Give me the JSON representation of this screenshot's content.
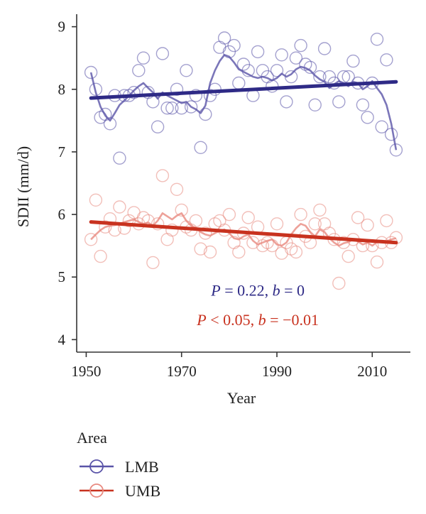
{
  "chart_data": {
    "type": "scatter",
    "xlabel": "Year",
    "ylabel": "SDII (mm/d)",
    "xlim": [
      1948,
      2018
    ],
    "ylim": [
      3.8,
      9.2
    ],
    "x_ticks": [
      1950,
      1970,
      1990,
      2010
    ],
    "y_ticks": [
      4,
      5,
      6,
      7,
      8,
      9
    ],
    "grid": false,
    "legend": {
      "title": "Area",
      "placement": "bottom-left",
      "entries": [
        "LMB",
        "UMB"
      ]
    },
    "annotations": [
      {
        "p_label": "P",
        "p_text": " = 0.22, ",
        "b_label": "b",
        "b_text": " = 0",
        "color": "#2e2a86",
        "x": 1986,
        "y": 4.7
      },
      {
        "p_label": "P",
        "p_text": " < 0.05, ",
        "b_label": "b",
        "b_text": " = −0.01",
        "color": "#c8321f",
        "x": 1986,
        "y": 4.23
      }
    ],
    "series": [
      {
        "name": "LMB",
        "color": "#5a54a8",
        "trend_color": "#2e2a86",
        "trend": [
          [
            1951,
            7.86
          ],
          [
            2015,
            8.12
          ]
        ],
        "x": [
          1951,
          1952,
          1953,
          1954,
          1955,
          1956,
          1957,
          1958,
          1959,
          1960,
          1961,
          1962,
          1963,
          1964,
          1965,
          1966,
          1967,
          1968,
          1969,
          1970,
          1971,
          1972,
          1973,
          1974,
          1975,
          1976,
          1977,
          1978,
          1979,
          1980,
          1981,
          1982,
          1983,
          1984,
          1985,
          1986,
          1987,
          1988,
          1989,
          1990,
          1991,
          1992,
          1993,
          1994,
          1995,
          1996,
          1997,
          1998,
          1999,
          2000,
          2001,
          2002,
          2003,
          2004,
          2005,
          2006,
          2007,
          2008,
          2009,
          2010,
          2011,
          2012,
          2013,
          2014,
          2015
        ],
        "y": [
          8.27,
          8.0,
          7.55,
          7.6,
          7.45,
          7.9,
          6.9,
          7.9,
          7.9,
          7.95,
          8.3,
          8.5,
          7.95,
          7.8,
          7.4,
          8.57,
          7.7,
          7.7,
          8.0,
          7.7,
          8.3,
          7.72,
          7.9,
          7.07,
          7.6,
          7.9,
          8.0,
          8.67,
          8.82,
          8.6,
          8.7,
          8.1,
          8.4,
          8.3,
          7.9,
          8.6,
          8.3,
          8.2,
          8.05,
          8.3,
          8.55,
          7.8,
          8.2,
          8.5,
          8.7,
          8.4,
          8.35,
          7.75,
          8.2,
          8.65,
          8.2,
          8.1,
          7.8,
          8.2,
          8.2,
          8.45,
          8.1,
          7.75,
          7.55,
          8.1,
          8.8,
          7.4,
          8.47,
          7.28,
          7.03
        ],
        "smooth": [
          8.27,
          7.95,
          7.72,
          7.58,
          7.5,
          7.62,
          7.75,
          7.82,
          7.9,
          7.98,
          8.05,
          8.1,
          8.02,
          7.95,
          7.85,
          7.95,
          7.9,
          7.86,
          7.82,
          7.78,
          7.8,
          7.72,
          7.68,
          7.62,
          7.74,
          8.1,
          8.3,
          8.45,
          8.55,
          8.52,
          8.43,
          8.32,
          8.28,
          8.24,
          8.2,
          8.18,
          8.2,
          8.18,
          8.14,
          8.18,
          8.25,
          8.2,
          8.24,
          8.32,
          8.36,
          8.34,
          8.3,
          8.22,
          8.16,
          8.12,
          8.02,
          8.08,
          8.13,
          8.1,
          8.05,
          8.12,
          8.1,
          8.0,
          8.05,
          8.13,
          8.02,
          7.92,
          7.75,
          7.45,
          7.03
        ]
      },
      {
        "name": "UMB",
        "color": "#e88a80",
        "trend_color": "#c8321f",
        "trend": [
          [
            1951,
            5.88
          ],
          [
            2015,
            5.55
          ]
        ],
        "x": [
          1951,
          1952,
          1953,
          1954,
          1955,
          1956,
          1957,
          1958,
          1959,
          1960,
          1961,
          1962,
          1963,
          1964,
          1965,
          1966,
          1967,
          1968,
          1969,
          1970,
          1971,
          1972,
          1973,
          1974,
          1975,
          1976,
          1977,
          1978,
          1979,
          1980,
          1981,
          1982,
          1983,
          1984,
          1985,
          1986,
          1987,
          1988,
          1989,
          1990,
          1991,
          1992,
          1993,
          1994,
          1995,
          1996,
          1997,
          1998,
          1999,
          2000,
          2001,
          2002,
          2003,
          2004,
          2005,
          2006,
          2007,
          2008,
          2009,
          2010,
          2011,
          2012,
          2013,
          2014,
          2015
        ],
        "y": [
          5.6,
          6.23,
          5.33,
          5.8,
          5.93,
          5.75,
          6.12,
          5.78,
          5.9,
          6.03,
          5.85,
          5.95,
          5.9,
          5.23,
          5.85,
          6.62,
          5.6,
          5.75,
          6.4,
          6.07,
          5.8,
          5.75,
          5.9,
          5.45,
          5.7,
          5.4,
          5.85,
          5.9,
          5.75,
          6.0,
          5.55,
          5.4,
          5.7,
          5.95,
          5.55,
          5.8,
          5.5,
          5.55,
          5.5,
          5.85,
          5.38,
          5.55,
          5.45,
          5.4,
          6.0,
          5.65,
          5.55,
          5.85,
          6.07,
          5.85,
          5.7,
          5.6,
          4.9,
          5.55,
          5.33,
          5.6,
          5.95,
          5.5,
          5.83,
          5.5,
          5.24,
          5.55,
          5.9,
          5.55,
          5.63
        ],
        "smooth": [
          5.6,
          5.68,
          5.75,
          5.8,
          5.82,
          5.83,
          5.85,
          5.88,
          5.9,
          5.92,
          5.88,
          5.85,
          5.87,
          5.82,
          5.9,
          6.02,
          5.97,
          5.92,
          5.98,
          6.02,
          5.9,
          5.82,
          5.78,
          5.72,
          5.68,
          5.66,
          5.7,
          5.74,
          5.76,
          5.7,
          5.62,
          5.6,
          5.65,
          5.68,
          5.58,
          5.52,
          5.55,
          5.58,
          5.6,
          5.52,
          5.5,
          5.55,
          5.68,
          5.78,
          5.85,
          5.82,
          5.72,
          5.65,
          5.76,
          5.72,
          5.62,
          5.55,
          5.5,
          5.54,
          5.56,
          5.6,
          5.57,
          5.52,
          5.55,
          5.5,
          5.56,
          5.58,
          5.57,
          5.6,
          5.62
        ]
      }
    ]
  }
}
